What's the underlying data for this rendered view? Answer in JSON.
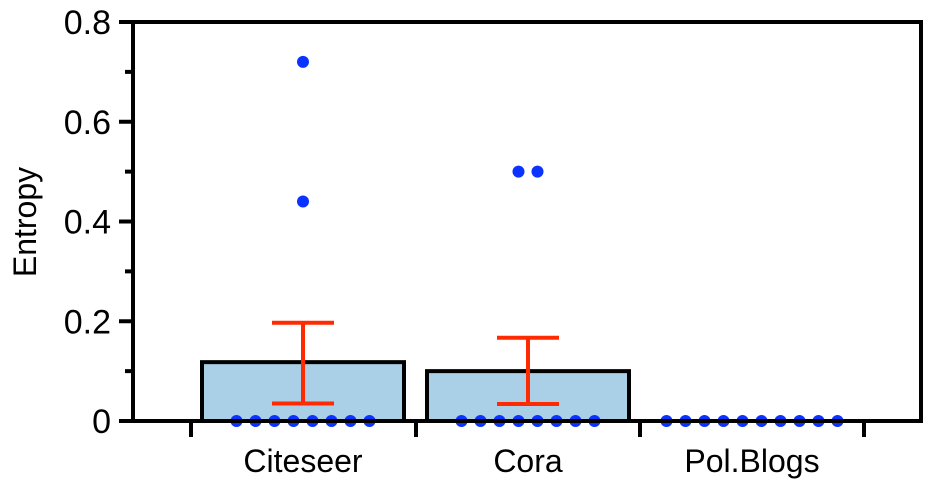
{
  "chart_data": {
    "type": "bar",
    "ylabel": "Entropy",
    "xlabel": "",
    "ylim": [
      0,
      0.8
    ],
    "yticks": [
      "0",
      "0.2",
      "0.4",
      "0.6",
      "0.8"
    ],
    "categories": [
      "Citeseer",
      "Cora",
      "Pol.Blogs"
    ],
    "values": [
      0.118,
      0.1,
      0.0
    ],
    "error_bars": [
      {
        "low": 0.035,
        "high": 0.197
      },
      {
        "low": 0.034,
        "high": 0.167
      },
      {
        "low": 0.0,
        "high": 0.0
      }
    ],
    "points": [
      [
        0.72,
        0.44,
        0,
        0,
        0,
        0,
        0,
        0,
        0,
        0
      ],
      [
        0.5,
        0.5,
        0,
        0,
        0,
        0,
        0,
        0,
        0,
        0
      ],
      [
        0,
        0,
        0,
        0,
        0,
        0,
        0,
        0,
        0,
        0
      ]
    ],
    "grid": false,
    "colors": {
      "bar_fill": "#a9d0e6",
      "bar_stroke": "#000000",
      "error_bar": "#ff2a00",
      "points": "#0b33ff"
    }
  }
}
